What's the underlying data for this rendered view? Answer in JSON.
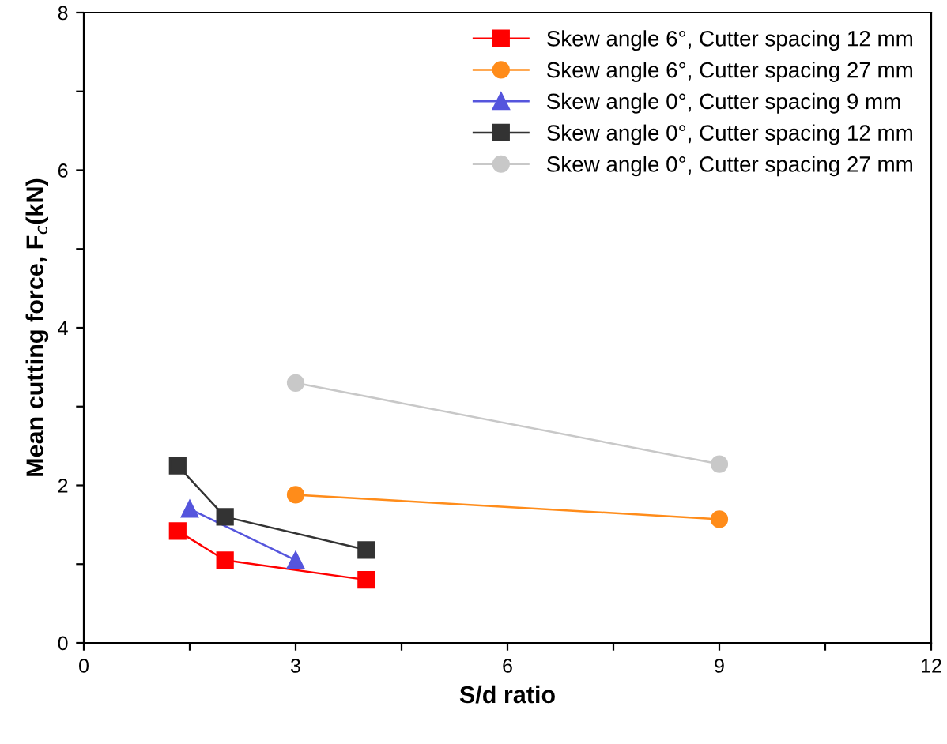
{
  "chart_data": {
    "type": "line",
    "xlabel": "S/d ratio",
    "ylabel": "Mean cutting force, F$_{c}$(kN)",
    "xlim": [
      0,
      12
    ],
    "ylim": [
      0,
      8
    ],
    "xticks": [
      0,
      {
        "value": 1.5,
        "label": null
      },
      3,
      {
        "value": 4.5,
        "label": null
      },
      6,
      {
        "value": 7.5,
        "label": null
      },
      9,
      {
        "value": 10.5,
        "label": null
      },
      12
    ],
    "yticks": [
      0,
      {
        "value": 1,
        "label": null
      },
      2,
      {
        "value": 3,
        "label": null
      },
      4,
      {
        "value": 5,
        "label": null
      },
      6,
      {
        "value": 7,
        "label": null
      },
      8
    ],
    "legend": "top right",
    "grid": false,
    "line_style": "solid",
    "series": [
      {
        "name": "Skew angle 6°, Cutter spacing 12 mm",
        "color": "#ff0000",
        "marker": "square",
        "x": [
          1.33,
          2,
          4
        ],
        "values": [
          1.42,
          1.05,
          0.8
        ]
      },
      {
        "name": "Skew angle 6°, Cutter spacing 27 mm",
        "color": "#ff8c1a",
        "marker": "circle",
        "x": [
          3,
          9
        ],
        "values": [
          1.88,
          1.57
        ]
      },
      {
        "name": "Skew angle 0°, Cutter spacing 9 mm",
        "color": "#5555dd",
        "marker": "triangle",
        "x": [
          1.5,
          3
        ],
        "values": [
          1.7,
          1.05
        ]
      },
      {
        "name": "Skew angle 0°, Cutter spacing 12 mm",
        "color": "#333333",
        "marker": "square",
        "x": [
          1.33,
          2,
          4
        ],
        "values": [
          2.25,
          1.6,
          1.18
        ]
      },
      {
        "name": "Skew angle 0°, Cutter spacing 27 mm",
        "color": "#c8c8c8",
        "marker": "circle",
        "x": [
          3,
          9
        ],
        "values": [
          3.3,
          2.27
        ]
      }
    ]
  }
}
